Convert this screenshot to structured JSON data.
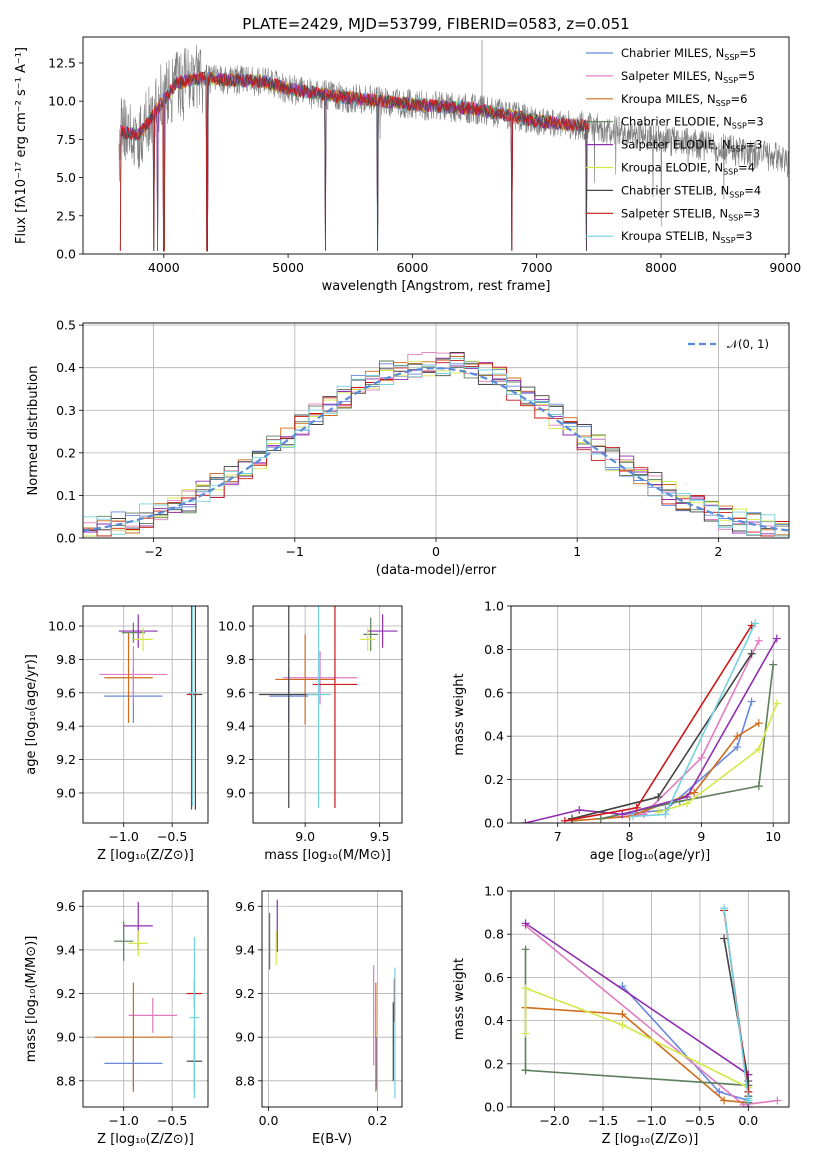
{
  "figure": {
    "title": "PLATE=2429, MJD=53799, FIBERID=0583, z=0.051"
  },
  "models": [
    {
      "name": "Chabrier MILES",
      "nssp": "5",
      "color": "#6688dd"
    },
    {
      "name": "Salpeter MILES",
      "nssp": "5",
      "color": "#e07cc0"
    },
    {
      "name": "Kroupa MILES",
      "nssp": "6",
      "color": "#d06c1c"
    },
    {
      "name": "Chabrier ELODIE",
      "nssp": "3",
      "color": "#5c7f5c"
    },
    {
      "name": "Salpeter ELODIE",
      "nssp": "3",
      "color": "#8e2fb0"
    },
    {
      "name": "Kroupa ELODIE",
      "nssp": "4",
      "color": "#d4e849"
    },
    {
      "name": "Chabrier STELIB",
      "nssp": "4",
      "color": "#444444"
    },
    {
      "name": "Salpeter STELIB",
      "nssp": "3",
      "color": "#cc1818"
    },
    {
      "name": "Kroupa STELIB",
      "nssp": "3",
      "color": "#73d2e0"
    }
  ],
  "legend_suffix": "N",
  "legend_sub": "SSP",
  "chart_data": [
    {
      "id": "spectrum",
      "type": "line",
      "xlabel": "wavelength [Angstrom, rest frame]",
      "ylabel": "Flux [fλ10⁻¹⁷ erg cm⁻² s⁻¹ A⁻¹]",
      "xlim": [
        3350,
        9030
      ],
      "ylim": [
        0,
        14.2
      ],
      "xticks": [
        4000,
        5000,
        6000,
        7000,
        8000,
        9000
      ],
      "yticks": [
        0.0,
        2.5,
        5.0,
        7.5,
        10.0,
        12.5
      ],
      "legend": "top-right",
      "grid": false,
      "continuum": [
        [
          3650,
          8.0
        ],
        [
          3800,
          7.8
        ],
        [
          3950,
          9.5
        ],
        [
          4100,
          11.2
        ],
        [
          4300,
          11.5
        ],
        [
          4500,
          11.4
        ],
        [
          4800,
          11.3
        ],
        [
          5000,
          10.8
        ],
        [
          5500,
          10.2
        ],
        [
          6000,
          9.8
        ],
        [
          6500,
          9.5
        ],
        [
          7000,
          8.7
        ],
        [
          7500,
          8.3
        ],
        [
          8000,
          7.5
        ],
        [
          8500,
          6.9
        ],
        [
          9000,
          6.2
        ]
      ],
      "data_start": 3640,
      "models_end": 7420,
      "dips": [
        3650,
        3920,
        3950,
        4000,
        4350,
        5300,
        5720,
        6800,
        7400
      ]
    },
    {
      "id": "residuals",
      "type": "histogram",
      "xlabel": "(data-model)/error",
      "ylabel": "Normed distribution",
      "xlim": [
        -2.5,
        2.5
      ],
      "ylim": [
        0,
        0.505
      ],
      "xticks": [
        -2,
        -1,
        0,
        1,
        2
      ],
      "yticks": [
        0.0,
        0.1,
        0.2,
        0.3,
        0.4,
        0.5
      ],
      "grid": true,
      "reference_label": "𝒩(0, 1)",
      "bin_width": 0.1,
      "legend": "top-right"
    },
    {
      "id": "age_vs_Z",
      "type": "errorbar",
      "xlabel": "Z [log₁₀(Z/Z⊙)]",
      "ylabel": "age  [log₁₀(age/yr)]",
      "xlim": [
        -1.42,
        -0.13
      ],
      "ylim": [
        8.82,
        10.12
      ],
      "xticks": [
        -1.0,
        -0.5
      ],
      "yticks": [
        9.0,
        9.2,
        9.4,
        9.6,
        9.8,
        10.0
      ],
      "grid": true,
      "points": [
        {
          "x": -0.9,
          "y": 9.58,
          "xerr": 0.3,
          "yerr": 0.16
        },
        {
          "x": -0.9,
          "y": 9.71,
          "xerr": 0.35,
          "yerr": 0.17
        },
        {
          "x": -0.95,
          "y": 9.69,
          "xerr": 0.25,
          "yerr": 0.27
        },
        {
          "x": -0.9,
          "y": 9.96,
          "xerr": 0.12,
          "yerr": 0.06
        },
        {
          "x": -0.85,
          "y": 9.97,
          "xerr": 0.2,
          "yerr": 0.1
        },
        {
          "x": -0.8,
          "y": 9.92,
          "xerr": 0.1,
          "yerr": 0.07
        },
        {
          "x": -0.26,
          "y": 9.59,
          "xerr": 0.07,
          "yerr": 0.69
        },
        {
          "x": -0.3,
          "y": 9.59,
          "xerr": 0.05,
          "yerr": 0.69
        },
        {
          "x": -0.29,
          "y": 9.6,
          "xerr": 0.04,
          "yerr": 0.68
        }
      ]
    },
    {
      "id": "age_vs_mass",
      "type": "errorbar",
      "xlabel": "mass [log₁₀(M/M⊙)]",
      "ylabel": "",
      "xlim": [
        8.65,
        9.65
      ],
      "ylim": [
        8.82,
        10.12
      ],
      "xticks": [
        9.0,
        9.5
      ],
      "yticks": [
        9.0,
        9.2,
        9.4,
        9.6,
        9.8,
        10.0
      ],
      "grid": true,
      "points": [
        {
          "x": 8.89,
          "y": 9.58,
          "xerr": 0.13,
          "yerr": 0.16
        },
        {
          "x": 9.1,
          "y": 9.69,
          "xerr": 0.25,
          "yerr": 0.16
        },
        {
          "x": 9.0,
          "y": 9.68,
          "xerr": 0.2,
          "yerr": 0.27
        },
        {
          "x": 9.44,
          "y": 9.95,
          "xerr": 0.05,
          "yerr": 0.1
        },
        {
          "x": 9.52,
          "y": 9.97,
          "xerr": 0.1,
          "yerr": 0.1
        },
        {
          "x": 9.42,
          "y": 9.92,
          "xerr": 0.05,
          "yerr": 0.07
        },
        {
          "x": 8.89,
          "y": 9.59,
          "xerr": 0.2,
          "yerr": 0.68
        },
        {
          "x": 9.2,
          "y": 9.65,
          "xerr": 0.15,
          "yerr": 0.74
        },
        {
          "x": 9.09,
          "y": 9.59,
          "xerr": 0.08,
          "yerr": 0.68
        }
      ]
    },
    {
      "id": "mass_weight_vs_age",
      "type": "line",
      "xlabel": "age  [log₁₀(age/yr)]",
      "ylabel": "mass weight",
      "xlim": [
        6.35,
        10.22
      ],
      "ylim": [
        0,
        1.0
      ],
      "xticks": [
        7,
        8,
        9,
        10
      ],
      "yticks": [
        0.0,
        0.2,
        0.4,
        0.6,
        0.8,
        1.0
      ],
      "grid": true,
      "series": [
        {
          "x": [
            7.9,
            8.5,
            9.5,
            9.7
          ],
          "y": [
            0.04,
            0.06,
            0.35,
            0.56
          ]
        },
        {
          "x": [
            7.6,
            8.2,
            9.0,
            9.8
          ],
          "y": [
            0.02,
            0.04,
            0.3,
            0.84
          ]
        },
        {
          "x": [
            7.2,
            8.0,
            8.9,
            9.5,
            9.8
          ],
          "y": [
            0.01,
            0.03,
            0.14,
            0.4,
            0.46
          ]
        },
        {
          "x": [
            7.6,
            8.7,
            9.8,
            10.0
          ],
          "y": [
            0.02,
            0.1,
            0.17,
            0.73
          ]
        },
        {
          "x": [
            6.55,
            7.3,
            7.9,
            8.8,
            10.05
          ],
          "y": [
            0.0,
            0.06,
            0.04,
            0.12,
            0.85
          ]
        },
        {
          "x": [
            8.4,
            8.8,
            9.8,
            10.05
          ],
          "y": [
            0.05,
            0.09,
            0.34,
            0.55
          ]
        },
        {
          "x": [
            7.2,
            8.4,
            9.7
          ],
          "y": [
            0.02,
            0.12,
            0.78
          ]
        },
        {
          "x": [
            7.1,
            8.1,
            9.7
          ],
          "y": [
            0.01,
            0.07,
            0.91
          ]
        },
        {
          "x": [
            8.05,
            8.5,
            9.75
          ],
          "y": [
            0.03,
            0.04,
            0.92
          ]
        }
      ]
    },
    {
      "id": "mass_vs_Z",
      "type": "errorbar",
      "xlabel": "Z [log₁₀(Z/Z⊙)]",
      "ylabel": "mass [log₁₀(M/M⊙)]",
      "xlim": [
        -1.42,
        -0.13
      ],
      "ylim": [
        8.68,
        9.67
      ],
      "xticks": [
        -1.0,
        -0.5
      ],
      "yticks": [
        8.8,
        9.0,
        9.2,
        9.4,
        9.6
      ],
      "grid": true,
      "points": [
        {
          "x": -0.9,
          "y": 8.88,
          "xerr": 0.3,
          "yerr": 0.12
        },
        {
          "x": -0.7,
          "y": 9.1,
          "xerr": 0.25,
          "yerr": 0.08
        },
        {
          "x": -0.9,
          "y": 9.0,
          "xerr": 0.4,
          "yerr": 0.25
        },
        {
          "x": -1.0,
          "y": 9.44,
          "xerr": 0.1,
          "yerr": 0.09
        },
        {
          "x": -0.85,
          "y": 9.51,
          "xerr": 0.15,
          "yerr": 0.11
        },
        {
          "x": -0.85,
          "y": 9.43,
          "xerr": 0.1,
          "yerr": 0.06
        },
        {
          "x": -0.27,
          "y": 8.89,
          "xerr": 0.08,
          "yerr": 0.15
        },
        {
          "x": -0.27,
          "y": 9.2,
          "xerr": 0.08,
          "yerr": 0.07
        },
        {
          "x": -0.27,
          "y": 9.09,
          "xerr": 0.05,
          "yerr": 0.37
        }
      ]
    },
    {
      "id": "mass_vs_ebv",
      "type": "errorbar",
      "xlabel": "E(B-V)",
      "ylabel": "",
      "xlim": [
        -0.012,
        0.245
      ],
      "ylim": [
        8.68,
        9.67
      ],
      "xticks": [
        0.0,
        0.2
      ],
      "yticks": [
        8.8,
        9.0,
        9.2,
        9.4,
        9.6
      ],
      "grid": true,
      "points": [
        {
          "x": 0.198,
          "y": 8.88,
          "xerr": 0.001,
          "yerr": 0.12
        },
        {
          "x": 0.193,
          "y": 9.1,
          "xerr": 0.001,
          "yerr": 0.23
        },
        {
          "x": 0.197,
          "y": 9.0,
          "xerr": 0.001,
          "yerr": 0.25
        },
        {
          "x": 0.002,
          "y": 9.44,
          "xerr": 0.001,
          "yerr": 0.13
        },
        {
          "x": 0.016,
          "y": 9.51,
          "xerr": 0.001,
          "yerr": 0.12
        },
        {
          "x": 0.014,
          "y": 9.41,
          "xerr": 0.001,
          "yerr": 0.08
        },
        {
          "x": 0.229,
          "y": 8.98,
          "xerr": 0.001,
          "yerr": 0.18
        },
        {
          "x": 0.231,
          "y": 9.17,
          "xerr": 0.001,
          "yerr": 0.1
        },
        {
          "x": 0.232,
          "y": 9.02,
          "xerr": 0.001,
          "yerr": 0.3
        }
      ]
    },
    {
      "id": "mass_weight_vs_Z",
      "type": "line",
      "xlabel": "Z [log₁₀(Z/Z⊙)]",
      "ylabel": "mass weight",
      "xlim": [
        -2.45,
        0.42
      ],
      "ylim": [
        0,
        1.0
      ],
      "xticks": [
        -2.0,
        -1.5,
        -1.0,
        -0.5,
        0.0
      ],
      "yticks": [
        0.0,
        0.2,
        0.4,
        0.6,
        0.8,
        1.0
      ],
      "grid": true,
      "series": [
        {
          "x": [
            -1.3,
            -0.3,
            0.0
          ],
          "y": [
            0.56,
            0.07,
            0.03
          ]
        },
        {
          "x": [
            -2.3,
            -0.05,
            0.3
          ],
          "y": [
            0.84,
            0.01,
            0.03
          ]
        },
        {
          "x": [
            -2.3,
            -1.3,
            -0.25,
            0.0
          ],
          "y": [
            0.46,
            0.43,
            0.03,
            0.02
          ]
        },
        {
          "x": [
            -2.3,
            -2.3,
            -2.3,
            0.0,
            0.0
          ],
          "y": [
            0.17,
            0.73,
            0.17,
            0.1,
            0.02
          ]
        },
        {
          "x": [
            -2.3,
            0.0,
            0.0
          ],
          "y": [
            0.85,
            0.15,
            0.0
          ]
        },
        {
          "x": [
            -2.3,
            -2.3,
            -1.3,
            0.0
          ],
          "y": [
            0.34,
            0.55,
            0.38,
            0.09
          ]
        },
        {
          "x": [
            -0.25,
            0.0,
            0.0
          ],
          "y": [
            0.78,
            0.12,
            0.05
          ]
        },
        {
          "x": [
            -0.25,
            0.0
          ],
          "y": [
            0.91,
            0.07
          ]
        },
        {
          "x": [
            -0.25,
            0.0,
            0.0
          ],
          "y": [
            0.92,
            0.04,
            0.03
          ]
        }
      ]
    }
  ]
}
